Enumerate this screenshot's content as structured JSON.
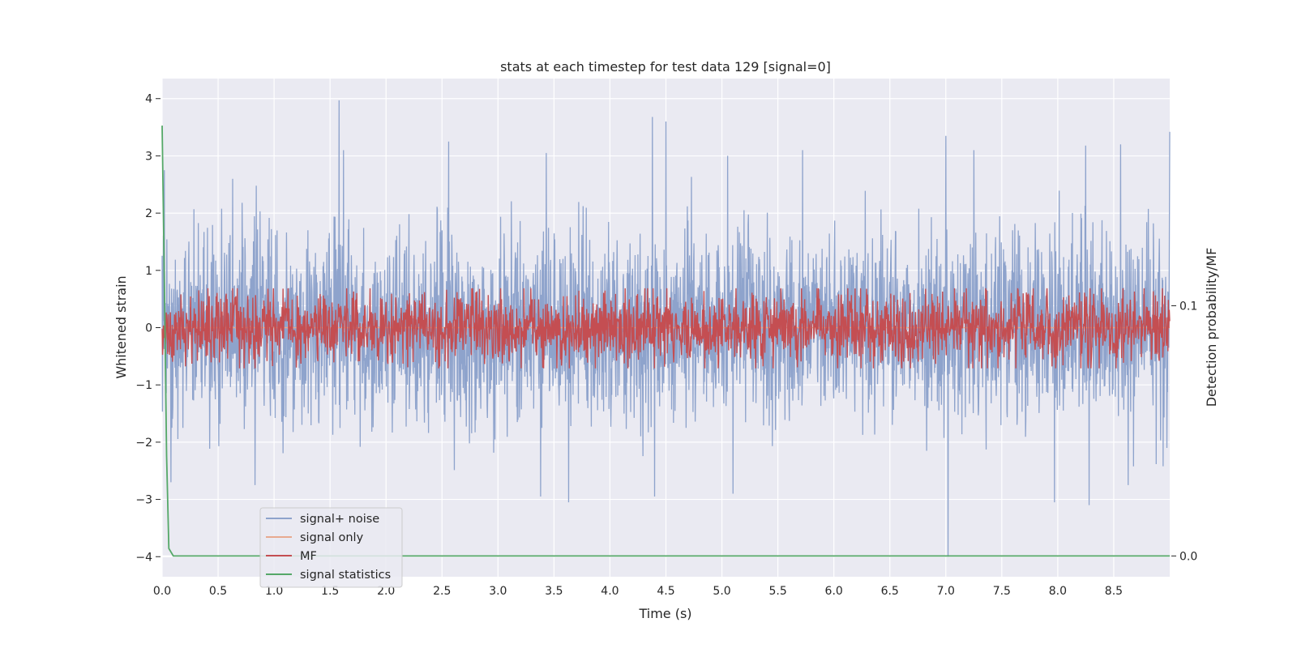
{
  "chart_data": {
    "type": "line",
    "title": "stats at each timestep for test data 129 [signal=0]",
    "xlabel": "Time (s)",
    "ylabel": "Whitened strain",
    "y2label": "Detection probability/MF",
    "xlim": [
      0.0,
      9.0
    ],
    "ylim": [
      -4.35,
      4.35
    ],
    "y2lim": [
      -0.0083,
      0.1908
    ],
    "x_ticks": [
      "0.0",
      "0.5",
      "1.0",
      "1.5",
      "2.0",
      "2.5",
      "3.0",
      "3.5",
      "4.0",
      "4.5",
      "5.0",
      "5.5",
      "6.0",
      "6.5",
      "7.0",
      "7.5",
      "8.0",
      "8.5"
    ],
    "x_tick_values": [
      0.0,
      0.5,
      1.0,
      1.5,
      2.0,
      2.5,
      3.0,
      3.5,
      4.0,
      4.5,
      5.0,
      5.5,
      6.0,
      6.5,
      7.0,
      7.5,
      8.0,
      8.5
    ],
    "y_ticks": [
      "4",
      "3",
      "2",
      "1",
      "0",
      "−1",
      "−2",
      "−3",
      "−4"
    ],
    "y_tick_values": [
      4,
      3,
      2,
      1,
      0,
      -1,
      -2,
      -3,
      -4
    ],
    "y2_ticks": [
      "0.1",
      "0.0"
    ],
    "y2_tick_values": [
      0.1,
      0.0
    ],
    "grid": true,
    "legend_position": "lower-left",
    "series": [
      {
        "name": "signal+ noise",
        "color": "#8ea3cc",
        "description": "whitened strain noise, approx. std 0.8 around 0",
        "peaks": [
          [
            0.02,
            2.75
          ],
          [
            0.63,
            2.6
          ],
          [
            1.58,
            3.97
          ],
          [
            1.62,
            3.1
          ],
          [
            2.56,
            3.25
          ],
          [
            3.43,
            3.05
          ],
          [
            4.38,
            3.68
          ],
          [
            4.5,
            3.6
          ],
          [
            5.05,
            3.0
          ],
          [
            5.72,
            3.1
          ],
          [
            7.0,
            3.35
          ],
          [
            7.25,
            3.1
          ],
          [
            8.25,
            3.18
          ],
          [
            8.56,
            3.2
          ],
          [
            9.0,
            3.42
          ]
        ],
        "troughs": [
          [
            0.08,
            -2.7
          ],
          [
            0.83,
            -2.75
          ],
          [
            3.38,
            -2.95
          ],
          [
            3.63,
            -3.05
          ],
          [
            4.4,
            -2.95
          ],
          [
            5.1,
            -2.9
          ],
          [
            7.02,
            -4.0
          ],
          [
            7.97,
            -3.05
          ],
          [
            8.28,
            -3.1
          ],
          [
            8.63,
            -2.75
          ]
        ]
      },
      {
        "name": "signal only",
        "color": "#e8a98f",
        "y": 0.0
      },
      {
        "name": "MF",
        "color": "#c44e52",
        "description": "matched filter output on right axis, fluctuating about 0.08-0.11",
        "y2_range": [
          0.075,
          0.107
        ]
      },
      {
        "name": "signal statistics",
        "color": "#55a868",
        "x": [
          0.0,
          0.02,
          0.04,
          0.06,
          0.1,
          9.0
        ],
        "y2": [
          0.172,
          0.11,
          0.04,
          0.003,
          0.0,
          0.0
        ]
      }
    ]
  }
}
